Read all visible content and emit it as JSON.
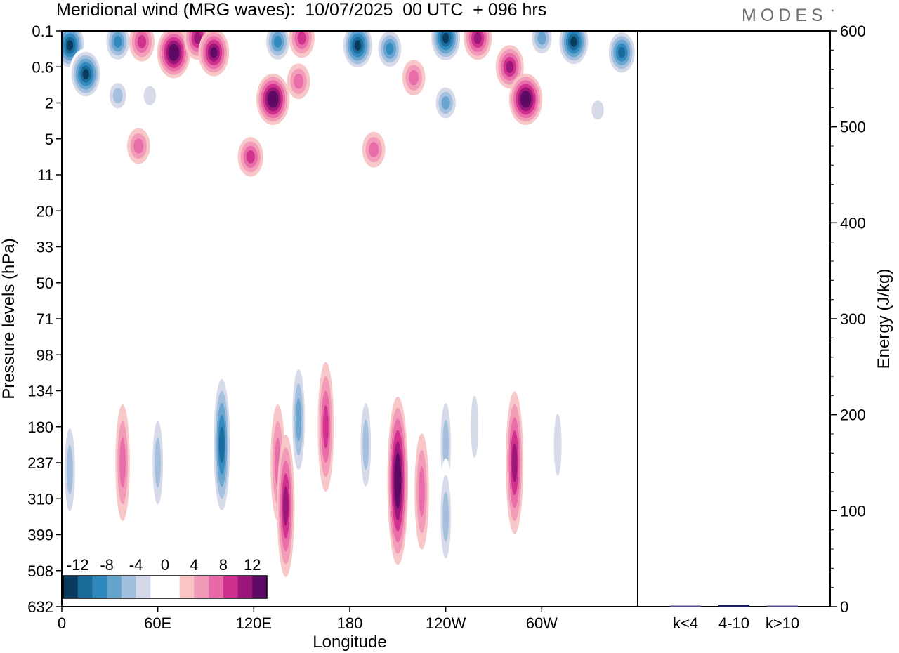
{
  "header": {
    "title": "Meridional wind (MRG waves):  10/07/2025  00 UTC  + 096 hrs",
    "logo": "MODES"
  },
  "chart_data": [
    {
      "type": "heatmap",
      "title": "Meridional wind (MRG waves):  10/07/2025  00 UTC  + 096 hrs",
      "xlabel": "Longitude",
      "ylabel": "Pressure levels (hPa)",
      "x_tick_labels": [
        "0",
        "60E",
        "120E",
        "180",
        "120W",
        "60W"
      ],
      "x_tick_longitudes": [
        0,
        60,
        120,
        180,
        240,
        300
      ],
      "xlim": [
        0,
        360
      ],
      "y_tick_labels": [
        "0.1",
        "0.6",
        "2",
        "5",
        "11",
        "20",
        "33",
        "50",
        "71",
        "98",
        "134",
        "180",
        "237",
        "310",
        "399",
        "508",
        "632"
      ],
      "y_scale": "level-index",
      "colorbar": {
        "tick_labels": [
          "-12",
          "-8",
          "-4",
          "0",
          "4",
          "8",
          "12"
        ],
        "levels": [
          -14,
          -12,
          -10,
          -8,
          -6,
          -4,
          -2,
          2,
          4,
          6,
          8,
          10,
          12,
          14
        ],
        "colors": [
          "#0a3a5c",
          "#1a6a9a",
          "#2f88be",
          "#66a3cf",
          "#a2bfdd",
          "#d4d8e8",
          "#ffffff",
          "#ffffff",
          "#f8c4c4",
          "#f19ab8",
          "#e76aa6",
          "#cf2f8c",
          "#9a1679",
          "#5c0a63"
        ]
      },
      "features": [
        {
          "lon": 5,
          "level": 0.4,
          "value": -14
        },
        {
          "lon": 15,
          "level": 1.2,
          "value": -14
        },
        {
          "lon": 35,
          "level": 0.3,
          "value": -10
        },
        {
          "lon": 50,
          "level": 0.3,
          "value": 8
        },
        {
          "lon": 70,
          "level": 0.6,
          "value": 14
        },
        {
          "lon": 85,
          "level": 0.2,
          "value": 10
        },
        {
          "lon": 95,
          "level": 0.6,
          "value": 12
        },
        {
          "lon": 135,
          "level": 0.3,
          "value": -10
        },
        {
          "lon": 150,
          "level": 0.2,
          "value": 8
        },
        {
          "lon": 185,
          "level": 0.4,
          "value": -14
        },
        {
          "lon": 205,
          "level": 0.5,
          "value": -10
        },
        {
          "lon": 240,
          "level": 0.2,
          "value": -14
        },
        {
          "lon": 260,
          "level": 0.2,
          "value": 10
        },
        {
          "lon": 280,
          "level": 1.0,
          "value": 10
        },
        {
          "lon": 300,
          "level": 0.2,
          "value": -8
        },
        {
          "lon": 320,
          "level": 0.3,
          "value": -14
        },
        {
          "lon": 350,
          "level": 0.6,
          "value": -12
        },
        {
          "lon": 35,
          "level": 1.8,
          "value": -6
        },
        {
          "lon": 55,
          "level": 1.8,
          "value": -4
        },
        {
          "lon": 132,
          "level": 1.9,
          "value": 14
        },
        {
          "lon": 148,
          "level": 1.4,
          "value": 6
        },
        {
          "lon": 220,
          "level": 1.3,
          "value": 6
        },
        {
          "lon": 240,
          "level": 2.0,
          "value": -8
        },
        {
          "lon": 290,
          "level": 1.9,
          "value": 14
        },
        {
          "lon": 335,
          "level": 2.2,
          "value": -4
        },
        {
          "lon": 48,
          "level": 3.2,
          "value": 6
        },
        {
          "lon": 118,
          "level": 3.5,
          "value": 8
        },
        {
          "lon": 195,
          "level": 3.3,
          "value": 6
        },
        {
          "lon": 100,
          "level": 11.5,
          "value": -12
        },
        {
          "lon": 135,
          "level": 12.0,
          "value": 6
        },
        {
          "lon": 148,
          "level": 10.8,
          "value": -8
        },
        {
          "lon": 165,
          "level": 11.0,
          "value": 8
        },
        {
          "lon": 190,
          "level": 11.5,
          "value": -6
        },
        {
          "lon": 210,
          "level": 12.5,
          "value": 14
        },
        {
          "lon": 225,
          "level": 12.8,
          "value": 6
        },
        {
          "lon": 240,
          "level": 11.5,
          "value": -6
        },
        {
          "lon": 258,
          "level": 11.0,
          "value": -4
        },
        {
          "lon": 283,
          "level": 12.0,
          "value": 10
        },
        {
          "lon": 310,
          "level": 11.5,
          "value": -4
        },
        {
          "lon": 5,
          "level": 12.2,
          "value": -6
        },
        {
          "lon": 38,
          "level": 12.0,
          "value": 6
        },
        {
          "lon": 60,
          "level": 12.0,
          "value": -6
        },
        {
          "lon": 140,
          "level": 13.2,
          "value": 10
        },
        {
          "lon": 240,
          "level": 13.5,
          "value": -6
        }
      ]
    },
    {
      "type": "bar",
      "ylabel": "Energy (J/kg)",
      "categories": [
        "k<4",
        "4-10",
        "k>10"
      ],
      "values": [
        0.5,
        2,
        0.3
      ],
      "ylim": [
        0,
        600
      ],
      "y_tick_labels": [
        "0",
        "100",
        "200",
        "300",
        "400",
        "500",
        "600"
      ],
      "y_ticks": [
        0,
        100,
        200,
        300,
        400,
        500,
        600
      ],
      "bar_colors": [
        "#4d4d8a",
        "#1c1c5c",
        "#4d4d8a"
      ]
    }
  ]
}
